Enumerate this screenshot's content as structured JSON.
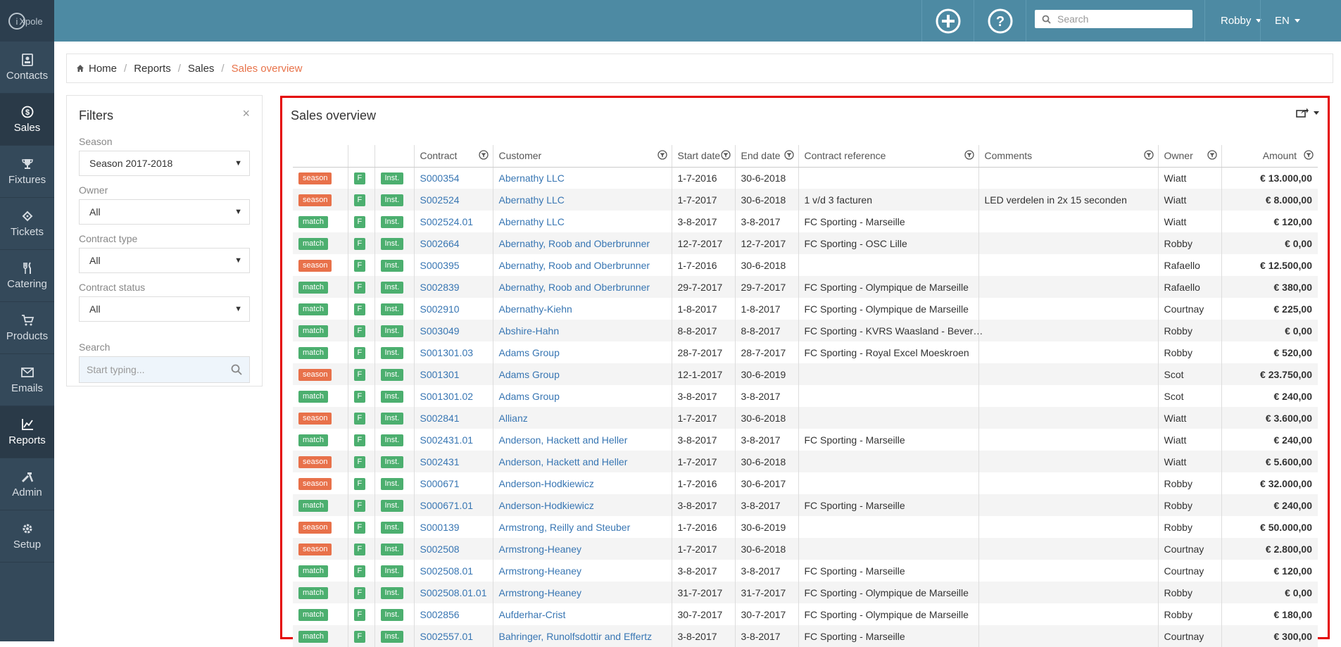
{
  "nav": [
    {
      "label": "Contacts",
      "icon": "contacts-icon"
    },
    {
      "label": "Sales",
      "icon": "dollar-icon",
      "active": true
    },
    {
      "label": "Fixtures",
      "icon": "trophy-icon"
    },
    {
      "label": "Tickets",
      "icon": "ticket-icon"
    },
    {
      "label": "Catering",
      "icon": "cutlery-icon"
    },
    {
      "label": "Products",
      "icon": "cart-icon"
    },
    {
      "label": "Emails",
      "icon": "envelope-icon"
    },
    {
      "label": "Reports",
      "icon": "chart-icon",
      "active": true
    },
    {
      "label": "Admin",
      "icon": "tools-icon"
    },
    {
      "label": "Setup",
      "icon": "cog-icon"
    }
  ],
  "topbar": {
    "search_placeholder": "Search",
    "user": "Robby",
    "lang": "EN"
  },
  "breadcrumb": [
    "Home",
    "Reports",
    "Sales",
    "Sales overview"
  ],
  "filters": {
    "title": "Filters",
    "close": "×",
    "season_label": "Season",
    "season_value": "Season 2017-2018",
    "owner_label": "Owner",
    "owner_value": "All",
    "ctype_label": "Contract type",
    "ctype_value": "All",
    "cstatus_label": "Contract status",
    "cstatus_value": "All",
    "search_label": "Search",
    "search_placeholder": "Start typing..."
  },
  "sales": {
    "title": "Sales overview",
    "columns": [
      "Contract",
      "Customer",
      "Start date",
      "End date",
      "Contract reference",
      "Comments",
      "Owner",
      "Amount"
    ],
    "rows": [
      {
        "type": "season",
        "f": "F",
        "inst": "Inst.",
        "contract": "S000354",
        "customer": "Abernathy LLC",
        "start": "1-7-2016",
        "end": "30-6-2018",
        "ref": "",
        "comments": "",
        "owner": "Wiatt",
        "amount": "€ 13.000,00"
      },
      {
        "type": "season",
        "f": "F",
        "inst": "Inst.",
        "contract": "S002524",
        "customer": "Abernathy LLC",
        "start": "1-7-2017",
        "end": "30-6-2018",
        "ref": "1 v/d 3 facturen",
        "comments": "LED verdelen in 2x 15 seconden",
        "owner": "Wiatt",
        "amount": "€ 8.000,00"
      },
      {
        "type": "match",
        "f": "F",
        "inst": "Inst.",
        "contract": "S002524.01",
        "customer": "Abernathy LLC",
        "start": "3-8-2017",
        "end": "3-8-2017",
        "ref": "FC Sporting - Marseille",
        "comments": "",
        "owner": "Wiatt",
        "amount": "€ 120,00"
      },
      {
        "type": "match",
        "f": "F",
        "inst": "Inst.",
        "contract": "S002664",
        "customer": "Abernathy, Roob and Oberbrunner",
        "start": "12-7-2017",
        "end": "12-7-2017",
        "ref": "FC Sporting - OSC Lille",
        "comments": "",
        "owner": "Robby",
        "amount": "€ 0,00"
      },
      {
        "type": "season",
        "f": "F",
        "inst": "Inst.",
        "contract": "S000395",
        "customer": "Abernathy, Roob and Oberbrunner",
        "start": "1-7-2016",
        "end": "30-6-2018",
        "ref": "",
        "comments": "",
        "owner": "Rafaello",
        "amount": "€ 12.500,00"
      },
      {
        "type": "match",
        "f": "F",
        "inst": "Inst.",
        "contract": "S002839",
        "customer": "Abernathy, Roob and Oberbrunner",
        "start": "29-7-2017",
        "end": "29-7-2017",
        "ref": "FC Sporting - Olympique de Marseille",
        "comments": "",
        "owner": "Rafaello",
        "amount": "€ 380,00"
      },
      {
        "type": "match",
        "f": "F",
        "inst": "Inst.",
        "contract": "S002910",
        "customer": "Abernathy-Kiehn",
        "start": "1-8-2017",
        "end": "1-8-2017",
        "ref": "FC Sporting - Olympique de Marseille",
        "comments": "",
        "owner": "Courtnay",
        "amount": "€ 225,00"
      },
      {
        "type": "match",
        "f": "F",
        "inst": "Inst.",
        "contract": "S003049",
        "customer": "Abshire-Hahn",
        "start": "8-8-2017",
        "end": "8-8-2017",
        "ref": "FC Sporting - KVRS Waasland - Bever…",
        "comments": "",
        "owner": "Robby",
        "amount": "€ 0,00"
      },
      {
        "type": "match",
        "f": "F",
        "inst": "Inst.",
        "contract": "S001301.03",
        "customer": "Adams Group",
        "start": "28-7-2017",
        "end": "28-7-2017",
        "ref": "FC Sporting - Royal Excel Moeskroen",
        "comments": "",
        "owner": "Robby",
        "amount": "€ 520,00"
      },
      {
        "type": "season",
        "f": "F",
        "inst": "Inst.",
        "contract": "S001301",
        "customer": "Adams Group",
        "start": "12-1-2017",
        "end": "30-6-2019",
        "ref": "",
        "comments": "",
        "owner": "Scot",
        "amount": "€ 23.750,00"
      },
      {
        "type": "match",
        "f": "F",
        "inst": "Inst.",
        "contract": "S001301.02",
        "customer": "Adams Group",
        "start": "3-8-2017",
        "end": "3-8-2017",
        "ref": "",
        "comments": "",
        "owner": "Scot",
        "amount": "€ 240,00"
      },
      {
        "type": "season",
        "f": "F",
        "inst": "Inst.",
        "contract": "S002841",
        "customer": "Allianz",
        "start": "1-7-2017",
        "end": "30-6-2018",
        "ref": "",
        "comments": "",
        "owner": "Wiatt",
        "amount": "€ 3.600,00"
      },
      {
        "type": "match",
        "f": "F",
        "inst": "Inst.",
        "contract": "S002431.01",
        "customer": "Anderson, Hackett and Heller",
        "start": "3-8-2017",
        "end": "3-8-2017",
        "ref": "FC Sporting - Marseille",
        "comments": "",
        "owner": "Wiatt",
        "amount": "€ 240,00"
      },
      {
        "type": "season",
        "f": "F",
        "inst": "Inst.",
        "contract": "S002431",
        "customer": "Anderson, Hackett and Heller",
        "start": "1-7-2017",
        "end": "30-6-2018",
        "ref": "",
        "comments": "",
        "owner": "Wiatt",
        "amount": "€ 5.600,00"
      },
      {
        "type": "season",
        "f": "F",
        "inst": "Inst.",
        "contract": "S000671",
        "customer": "Anderson-Hodkiewicz",
        "start": "1-7-2016",
        "end": "30-6-2017",
        "ref": "",
        "comments": "",
        "owner": "Robby",
        "amount": "€ 32.000,00"
      },
      {
        "type": "match",
        "f": "F",
        "inst": "Inst.",
        "contract": "S000671.01",
        "customer": "Anderson-Hodkiewicz",
        "start": "3-8-2017",
        "end": "3-8-2017",
        "ref": "FC Sporting - Marseille",
        "comments": "",
        "owner": "Robby",
        "amount": "€ 240,00"
      },
      {
        "type": "season",
        "f": "F",
        "inst": "Inst.",
        "contract": "S000139",
        "customer": "Armstrong, Reilly and Steuber",
        "start": "1-7-2016",
        "end": "30-6-2019",
        "ref": "",
        "comments": "",
        "owner": "Robby",
        "amount": "€ 50.000,00"
      },
      {
        "type": "season",
        "f": "F",
        "inst": "Inst.",
        "contract": "S002508",
        "customer": "Armstrong-Heaney",
        "start": "1-7-2017",
        "end": "30-6-2018",
        "ref": "",
        "comments": "",
        "owner": "Courtnay",
        "amount": "€ 2.800,00"
      },
      {
        "type": "match",
        "f": "F",
        "inst": "Inst.",
        "contract": "S002508.01",
        "customer": "Armstrong-Heaney",
        "start": "3-8-2017",
        "end": "3-8-2017",
        "ref": "FC Sporting - Marseille",
        "comments": "",
        "owner": "Courtnay",
        "amount": "€ 120,00"
      },
      {
        "type": "match",
        "f": "F",
        "inst": "Inst.",
        "contract": "S002508.01.01",
        "customer": "Armstrong-Heaney",
        "start": "31-7-2017",
        "end": "31-7-2017",
        "ref": "FC Sporting - Olympique de Marseille",
        "comments": "",
        "owner": "Robby",
        "amount": "€ 0,00"
      },
      {
        "type": "match",
        "f": "F",
        "inst": "Inst.",
        "contract": "S002856",
        "customer": "Aufderhar-Crist",
        "start": "30-7-2017",
        "end": "30-7-2017",
        "ref": "FC Sporting - Olympique de Marseille",
        "comments": "",
        "owner": "Robby",
        "amount": "€ 180,00"
      },
      {
        "type": "match",
        "f": "F",
        "inst": "Inst.",
        "contract": "S002557.01",
        "customer": "Bahringer, Runolfsdottir and Effertz",
        "start": "3-8-2017",
        "end": "3-8-2017",
        "ref": "FC Sporting - Marseille",
        "comments": "",
        "owner": "Courtnay",
        "amount": "€ 300,00"
      }
    ]
  },
  "colors": {
    "accent": "#e8734a",
    "topbar": "#4d8aa3",
    "sidebar": "#34495a",
    "match": "#4caf6f",
    "season": "#e8714a",
    "highlight": "#e40000"
  }
}
